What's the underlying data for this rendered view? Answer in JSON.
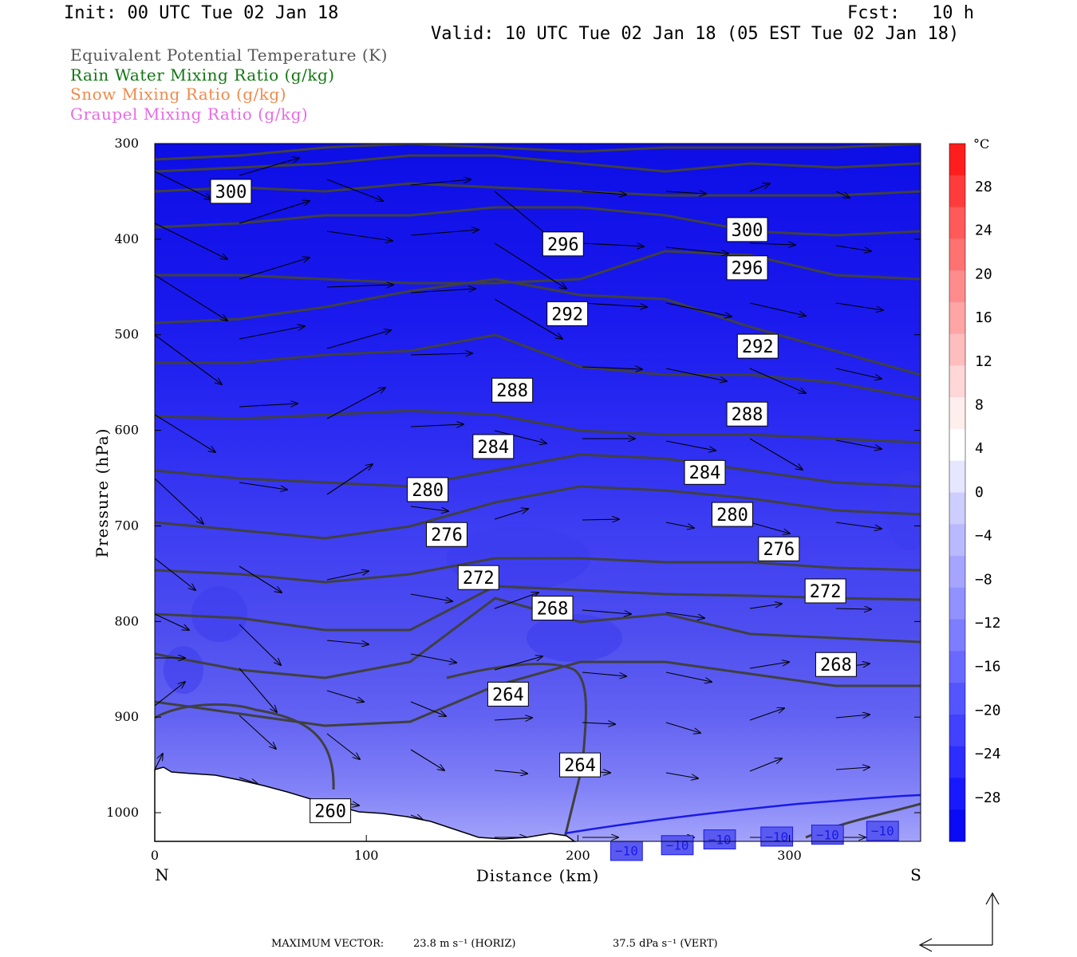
{
  "header": {
    "init": "Init: 00 UTC Tue 02 Jan 18",
    "fcst_label": "Fcst:",
    "fcst_value": "10 h",
    "valid": "Valid: 10 UTC Tue 02 Jan 18 (05 EST Tue 02 Jan 18)"
  },
  "legend": [
    {
      "label": "Equivalent Potential Temperature (K)",
      "color": "#555555"
    },
    {
      "label": "Rain Water Mixing Ratio (g/kg)",
      "color": "#117711"
    },
    {
      "label": "Snow Mixing Ratio (g/kg)",
      "color": "#f08a4b"
    },
    {
      "label": "Graupel Mixing Ratio (g/kg)",
      "color": "#e66be6"
    }
  ],
  "footer": {
    "max_vector_label": "MAXIMUM VECTOR:",
    "horiz": "23.8 m s⁻¹ (HORIZ)",
    "vert": "37.5 dPa s⁻¹ (VERT)"
  },
  "chart_data": {
    "type": "heatmap",
    "description_fields": "cross-section",
    "xlabel": "Distance (km)",
    "ylabel": "Pressure (hPa)",
    "x_ticks": [
      0,
      100,
      200,
      300
    ],
    "x_end_labels": {
      "left": "N",
      "right": "S"
    },
    "xlim": [
      0,
      362
    ],
    "y_ticks": [
      300,
      400,
      500,
      600,
      700,
      800,
      900,
      1000
    ],
    "ylim": [
      1030,
      300
    ],
    "colorbar": {
      "unit": "°C",
      "labels": [
        "28",
        "24",
        "20",
        "16",
        "12",
        "8",
        "4",
        "0",
        "−4",
        "−8",
        "−12",
        "−16",
        "−20",
        "−24",
        "−28"
      ],
      "colors": [
        "#ff1e1e",
        "#ff3c3c",
        "#ff5a5a",
        "#ff7272",
        "#ff8c8c",
        "#ffa5a5",
        "#ffbebe",
        "#ffd7d7",
        "#ffeeee",
        "#ffffff",
        "#e6e6ff",
        "#cdcdff",
        "#b9b9ff",
        "#a5a5ff",
        "#9191ff",
        "#7d7dff",
        "#6969ff",
        "#5555ff",
        "#4141ff",
        "#2d2dff",
        "#1919ff",
        "#0a0af5"
      ]
    },
    "theta_e_contours": [
      {
        "value": "300",
        "label_at": [
          {
            "x": 36,
            "p": 350
          },
          {
            "x": 280,
            "p": 390
          }
        ]
      },
      {
        "value": "296",
        "label_at": [
          {
            "x": 193,
            "p": 405
          },
          {
            "x": 280,
            "p": 430
          }
        ]
      },
      {
        "value": "292",
        "label_at": [
          {
            "x": 195,
            "p": 478
          },
          {
            "x": 285,
            "p": 512
          }
        ]
      },
      {
        "value": "288",
        "label_at": [
          {
            "x": 169,
            "p": 558
          },
          {
            "x": 280,
            "p": 583
          }
        ]
      },
      {
        "value": "284",
        "label_at": [
          {
            "x": 160,
            "p": 617
          },
          {
            "x": 260,
            "p": 644
          }
        ]
      },
      {
        "value": "280",
        "label_at": [
          {
            "x": 129,
            "p": 662
          },
          {
            "x": 273,
            "p": 688
          }
        ]
      },
      {
        "value": "276",
        "label_at": [
          {
            "x": 138,
            "p": 709
          },
          {
            "x": 295,
            "p": 724
          }
        ]
      },
      {
        "value": "272",
        "label_at": [
          {
            "x": 153,
            "p": 754
          },
          {
            "x": 317,
            "p": 768
          }
        ]
      },
      {
        "value": "268",
        "label_at": [
          {
            "x": 188,
            "p": 786
          },
          {
            "x": 322,
            "p": 845
          }
        ]
      },
      {
        "value": "264",
        "label_at": [
          {
            "x": 167,
            "p": 876
          },
          {
            "x": 201,
            "p": 950
          }
        ]
      },
      {
        "value": "260",
        "label_at": [
          {
            "x": 83,
            "p": 998
          }
        ]
      }
    ],
    "temperature_contour": {
      "value": "−10",
      "color": "#1a1ae6",
      "label_at": [
        {
          "x": 223,
          "p": 1040
        },
        {
          "x": 247,
          "p": 1034
        },
        {
          "x": 267,
          "p": 1028
        },
        {
          "x": 294,
          "p": 1025
        },
        {
          "x": 318,
          "p": 1023
        },
        {
          "x": 344,
          "p": 1019
        }
      ]
    }
  }
}
